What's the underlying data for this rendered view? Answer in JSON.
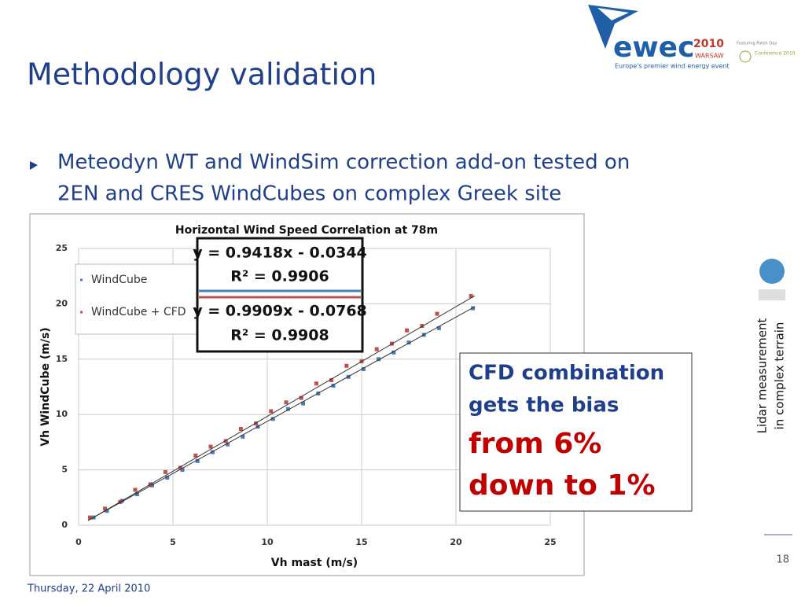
{
  "header": {
    "title": "Methodology validation"
  },
  "bullets": [
    "Meteodyn WT and WindSim correction add-on tested on",
    "2EN and CRES WindCubes on complex Greek site"
  ],
  "logo": {
    "name": "ewec",
    "year": "2010",
    "city": "WARSAW",
    "tagline": "Europe's premier wind energy event",
    "featuring": "Featuring Polish Day",
    "conference": "Conference 2010"
  },
  "chart_data": {
    "type": "scatter",
    "title": "Horizontal Wind Speed Correlation at 78m",
    "x_label": "Vh mast (m/s)",
    "y_label": "Vh WindCube (m/s)",
    "xlim": [
      0,
      25
    ],
    "ylim": [
      0,
      25
    ],
    "xticks": [
      0,
      5,
      10,
      15,
      20,
      25
    ],
    "yticks": [
      0,
      5,
      10,
      15,
      20,
      25
    ],
    "grid": true,
    "series": [
      {
        "name": "WindCube",
        "color": "#4a7ebb",
        "x": [
          0.8,
          1.5,
          2.3,
          3.1,
          3.9,
          4.7,
          5.5,
          6.3,
          7.1,
          7.9,
          8.7,
          9.5,
          10.3,
          11.1,
          11.9,
          12.7,
          13.5,
          14.3,
          15.1,
          15.9,
          16.7,
          17.5,
          18.3,
          19.1,
          20.9
        ],
        "values": [
          0.7,
          1.3,
          2.2,
          2.8,
          3.6,
          4.3,
          5.0,
          5.8,
          6.6,
          7.3,
          8.0,
          8.9,
          9.6,
          10.5,
          11.0,
          11.9,
          12.6,
          13.4,
          14.1,
          15.0,
          15.6,
          16.5,
          17.2,
          17.8,
          19.6
        ]
      },
      {
        "name": "WindCube + CFD",
        "color": "#c0504d",
        "x": [
          0.6,
          1.4,
          2.2,
          3.0,
          3.8,
          4.6,
          5.4,
          6.2,
          7.0,
          7.8,
          8.6,
          9.4,
          10.2,
          11.0,
          11.8,
          12.6,
          13.4,
          14.2,
          15.0,
          15.8,
          16.6,
          17.4,
          18.2,
          19.0,
          20.8
        ],
        "values": [
          0.7,
          1.5,
          2.1,
          3.2,
          3.7,
          4.8,
          5.2,
          6.3,
          7.1,
          7.6,
          8.7,
          9.2,
          10.3,
          11.1,
          11.5,
          12.8,
          13.1,
          14.4,
          14.8,
          15.9,
          16.4,
          17.6,
          18.0,
          19.1,
          20.7
        ]
      }
    ],
    "fits": [
      {
        "color": "#333333",
        "x": [
          0.5,
          21
        ],
        "values": [
          0.4365,
          19.743
        ]
      },
      {
        "color": "#333333",
        "x": [
          0.5,
          21
        ],
        "values": [
          0.4187,
          20.732
        ]
      }
    ],
    "annotations": [
      "y = 0.9418x - 0.0344",
      "R² = 0.9906",
      "y = 0.9909x - 0.0768",
      "R² = 0.9908"
    ]
  },
  "callout": {
    "lines": [
      "CFD combination",
      "gets the bias"
    ],
    "highlight": [
      "from 6%",
      "down to 1%"
    ]
  },
  "side_label": [
    "Lidar measurement",
    "in complex terrain"
  ],
  "footer": {
    "date": "Thursday, 22 April 2010",
    "page": "18"
  }
}
